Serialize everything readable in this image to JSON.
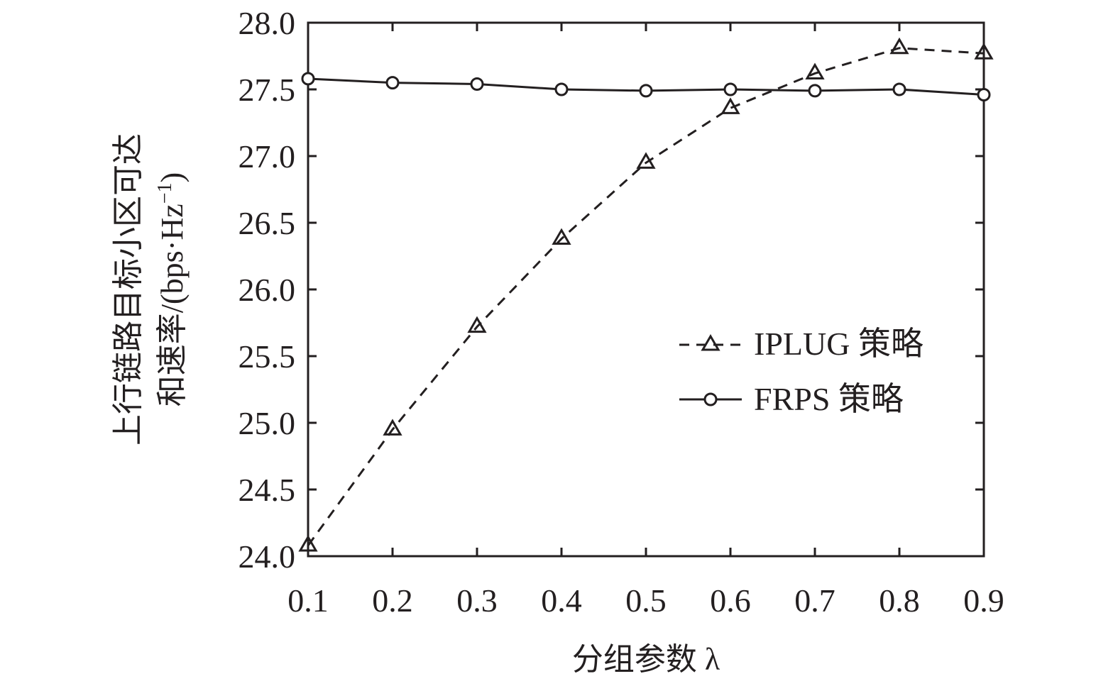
{
  "chart_data": {
    "type": "line",
    "title": "",
    "xlabel": "分组参数 λ",
    "ylabel_line1": "上行链路目标小区可达",
    "ylabel_line2": "和速率/(bps·Hz",
    "ylabel_sup": "−1",
    "ylabel_close": ")",
    "x": [
      0.1,
      0.2,
      0.3,
      0.4,
      0.5,
      0.6,
      0.7,
      0.8,
      0.9
    ],
    "x_tick_labels": [
      "0.1",
      "0.2",
      "0.3",
      "0.4",
      "0.5",
      "0.6",
      "0.7",
      "0.8",
      "0.9"
    ],
    "y_tick_labels": [
      "24.0",
      "24.5",
      "25.0",
      "25.5",
      "26.0",
      "26.5",
      "27.0",
      "27.5",
      "28.0"
    ],
    "y_ticks": [
      24.0,
      24.5,
      25.0,
      25.5,
      26.0,
      26.5,
      27.0,
      27.5,
      28.0
    ],
    "xlim": [
      0.1,
      0.9
    ],
    "ylim": [
      24.0,
      28.0
    ],
    "grid": false,
    "legend_position": "right",
    "series": [
      {
        "name": "IPLUG 策略",
        "marker": "triangle",
        "line_style": "dashed",
        "color": "#231f20",
        "values": [
          24.08,
          24.95,
          25.72,
          26.38,
          26.95,
          27.36,
          27.62,
          27.81,
          27.77
        ]
      },
      {
        "name": "FRPS 策略",
        "marker": "circle",
        "line_style": "solid",
        "color": "#231f20",
        "values": [
          27.58,
          27.55,
          27.54,
          27.5,
          27.49,
          27.5,
          27.49,
          27.5,
          27.46
        ]
      }
    ]
  }
}
